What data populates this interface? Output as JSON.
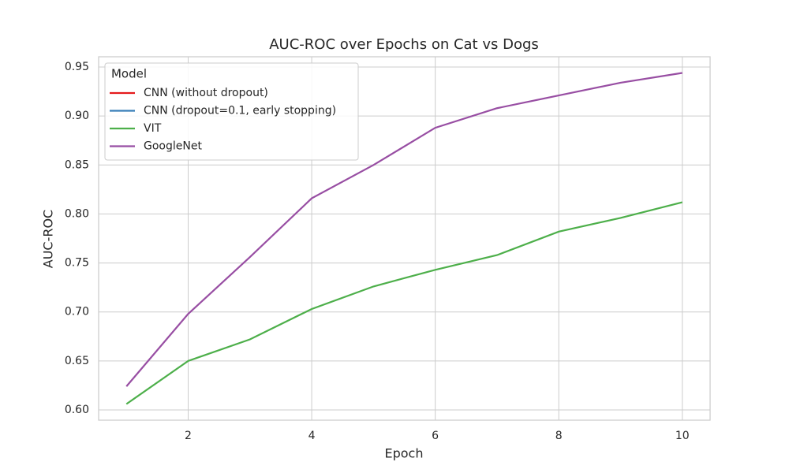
{
  "chart_data": {
    "type": "line",
    "title": "AUC-ROC over Epochs on Cat vs Dogs",
    "x_label": "Epoch",
    "y_label": "AUC-ROC",
    "legend_title": "Model",
    "legend": "upper left",
    "grid": true,
    "x": [
      1,
      2,
      3,
      4,
      5,
      6,
      7,
      8,
      9,
      10
    ],
    "series": [
      {
        "name": "CNN (without dropout)",
        "color": "#e41a1c",
        "values": [
          null,
          null,
          null,
          null,
          null,
          null,
          null,
          null,
          null,
          null
        ]
      },
      {
        "name": "CNN (dropout=0.1, early stopping)",
        "color": "#377eb8",
        "values": [
          null,
          null,
          null,
          null,
          null,
          null,
          null,
          null,
          null,
          null
        ]
      },
      {
        "name": "VIT",
        "color": "#4daf4a",
        "values": [
          0.606,
          0.65,
          0.672,
          0.703,
          0.726,
          0.743,
          0.758,
          0.782,
          0.796,
          0.812
        ]
      },
      {
        "name": "GoogleNet",
        "color": "#984ea3",
        "values": [
          0.624,
          0.698,
          0.756,
          0.816,
          0.85,
          0.888,
          0.908,
          0.921,
          0.934,
          0.944
        ]
      }
    ],
    "xlim": [
      0.55,
      10.45
    ],
    "xticks": [
      2,
      4,
      6,
      8,
      10
    ],
    "ylim": [
      0.5895,
      0.9605
    ],
    "yticks": [
      {
        "value": 0.6,
        "label": "0.60"
      },
      0.65,
      {
        "value": 0.7,
        "label": "0.70"
      },
      0.75,
      {
        "value": 0.8,
        "label": "0.80"
      },
      0.85,
      {
        "value": 0.9,
        "label": "0.90"
      },
      0.95
    ]
  }
}
